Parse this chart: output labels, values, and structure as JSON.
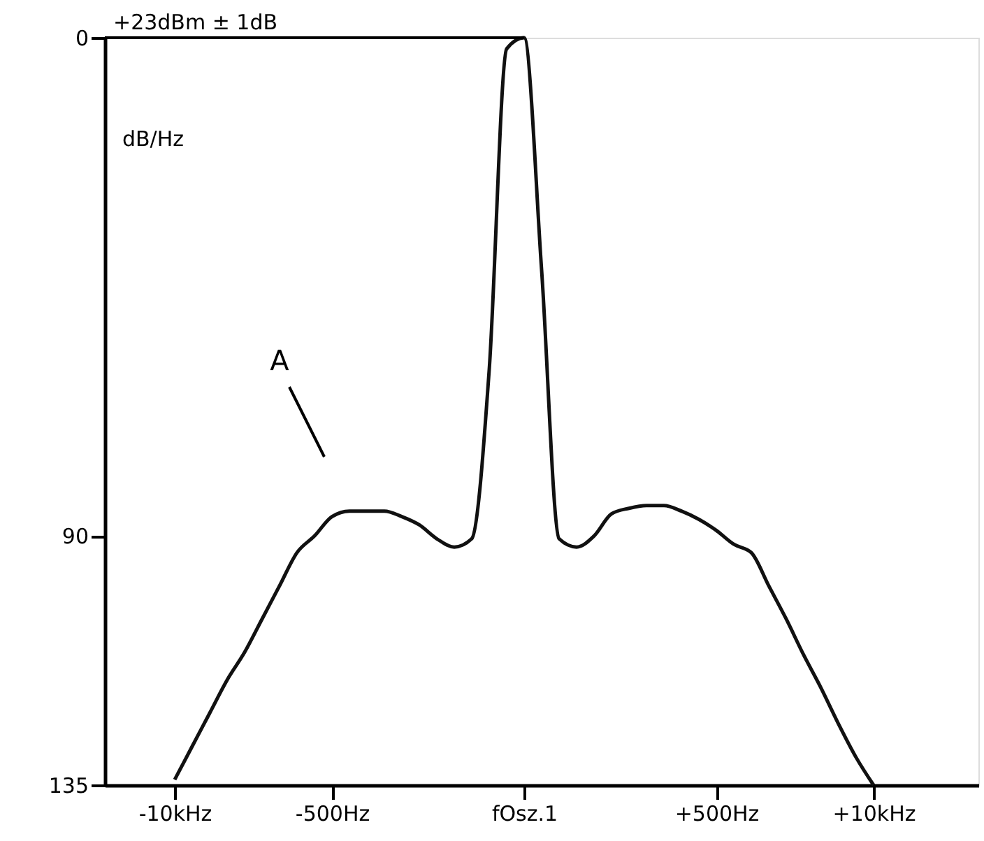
{
  "chart_data": {
    "type": "line",
    "ylabel": "dB/Hz",
    "categories": [
      null,
      null,
      null,
      null,
      "-10kHz",
      null,
      null,
      null,
      null,
      null,
      null,
      null,
      null,
      "-500Hz",
      null,
      null,
      null,
      null,
      null,
      null,
      null,
      null,
      null,
      null,
      "fOsz.1",
      null,
      null,
      null,
      null,
      null,
      null,
      null,
      null,
      null,
      null,
      "+500Hz",
      null,
      null,
      null,
      null,
      null,
      null,
      null,
      null,
      "+10kHz",
      null,
      null,
      null,
      null,
      null,
      null
    ],
    "ylim": [
      135,
      0
    ],
    "yticks": [
      0,
      90,
      135
    ],
    "grid": false,
    "marker": "none",
    "line_style": "solid",
    "series": [
      {
        "color": "#111111",
        "values": [
          null,
          null,
          null,
          null,
          134,
          128,
          122,
          116,
          111,
          105,
          99,
          93,
          90,
          86.5,
          85.5,
          85.5,
          85.5,
          86.5,
          88,
          90.5,
          92,
          90.5,
          60,
          2,
          0,
          42,
          90.5,
          92,
          90,
          86,
          85,
          84.5,
          84.5,
          85.5,
          87,
          89,
          91.5,
          93,
          99,
          105,
          111.5,
          117.5,
          124,
          130,
          135,
          null,
          null,
          null,
          null,
          null,
          null
        ]
      }
    ],
    "ref_lines": [
      {
        "axis": "y",
        "value": 0,
        "label": "+23dBm ± 1dB"
      }
    ],
    "annotations": [
      "A"
    ]
  }
}
